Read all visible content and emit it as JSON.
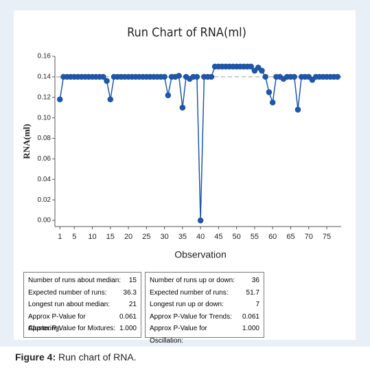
{
  "chart_data": {
    "type": "run",
    "title": "Run Chart of RNA(ml)",
    "x_label": "Observation",
    "y_label": "RNA(ml)",
    "x": [
      1,
      2,
      3,
      4,
      5,
      6,
      7,
      8,
      9,
      10,
      11,
      12,
      13,
      14,
      15,
      16,
      17,
      18,
      19,
      20,
      21,
      22,
      23,
      24,
      25,
      26,
      27,
      28,
      29,
      30,
      31,
      32,
      33,
      34,
      35,
      36,
      37,
      38,
      39,
      40,
      41,
      42,
      43,
      44,
      45,
      46,
      47,
      48,
      49,
      50,
      51,
      52,
      53,
      54,
      55,
      56,
      57,
      58,
      59,
      60,
      61,
      62,
      63,
      64,
      65,
      66,
      67,
      68,
      69,
      70,
      71,
      72,
      73,
      74,
      75,
      76,
      77,
      78
    ],
    "values": [
      0.118,
      0.14,
      0.14,
      0.14,
      0.14,
      0.14,
      0.14,
      0.14,
      0.14,
      0.14,
      0.14,
      0.14,
      0.14,
      0.136,
      0.118,
      0.14,
      0.14,
      0.14,
      0.14,
      0.14,
      0.14,
      0.14,
      0.14,
      0.14,
      0.14,
      0.14,
      0.14,
      0.14,
      0.14,
      0.14,
      0.122,
      0.14,
      0.14,
      0.141,
      0.11,
      0.14,
      0.138,
      0.14,
      0.14,
      0,
      0.14,
      0.14,
      0.14,
      0.15,
      0.15,
      0.15,
      0.15,
      0.15,
      0.15,
      0.15,
      0.15,
      0.15,
      0.15,
      0.15,
      0.146,
      0.149,
      0.146,
      0.14,
      0.125,
      0.115,
      0.14,
      0.14,
      0.138,
      0.14,
      0.14,
      0.14,
      0.108,
      0.14,
      0.14,
      0.14,
      0.137,
      0.14,
      0.14,
      0.14,
      0.14,
      0.14,
      0.14,
      0.14
    ],
    "median": 0.14,
    "color": "#1f56a8",
    "median_color": "#999999",
    "xlim": [
      0,
      79
    ],
    "xticks": [
      1,
      5,
      10,
      15,
      20,
      25,
      30,
      35,
      40,
      45,
      50,
      55,
      60,
      65,
      70,
      75
    ],
    "ylim": [
      -0.006,
      0.16
    ],
    "yticks": [
      {
        "value": 0,
        "label": "0.00"
      },
      {
        "value": 0.02,
        "label": "0.02"
      },
      {
        "value": 0.04,
        "label": "0.04"
      },
      {
        "value": 0.06,
        "label": "0.06"
      },
      {
        "value": 0.08,
        "label": "0.08"
      },
      {
        "value": 0.1,
        "label": "0.10"
      },
      {
        "value": 0.12,
        "label": "0.12"
      },
      {
        "value": 0.14,
        "label": "0.14"
      },
      {
        "value": 0.16,
        "label": "0.16"
      }
    ]
  },
  "stats": [
    [
      [
        "Number of runs about median:",
        "15"
      ],
      [
        "Expected number of runs:",
        "36.3"
      ],
      [
        "Longest run about median:",
        "21"
      ],
      [
        "Approx P-Value for Clustering:",
        "0.061"
      ],
      [
        "Approx P-Value for Mixtures:",
        "1.000"
      ]
    ],
    [
      [
        "Number of runs up or down:",
        "36"
      ],
      [
        "Expected number of runs:",
        "51.7"
      ],
      [
        "Longest run up or down:",
        "7"
      ],
      [
        "Approx P-Value for Trends:",
        "0.061"
      ],
      [
        "Approx P-Value for Oscillation:",
        "1.000"
      ]
    ]
  ],
  "caption": {
    "label": "Figure 4:",
    "text": "Run chart of RNA."
  }
}
